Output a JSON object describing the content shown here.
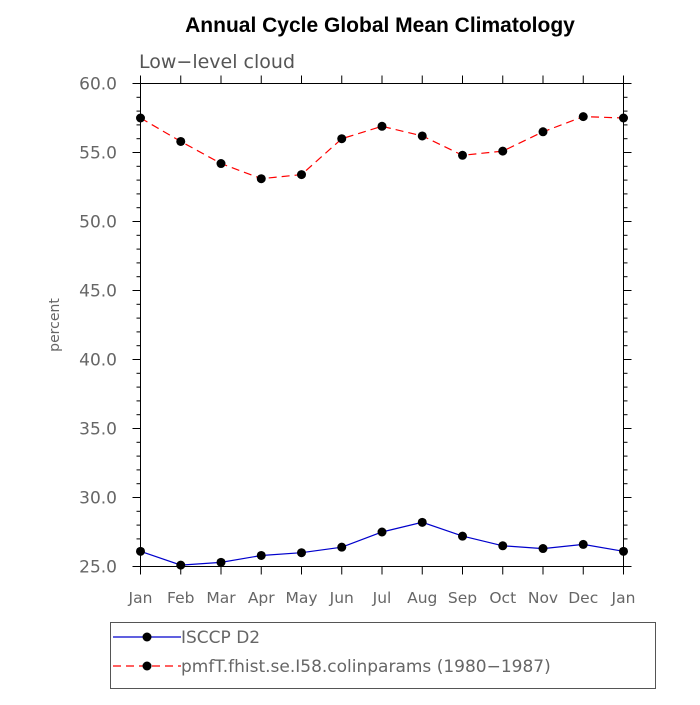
{
  "chart_data": {
    "type": "line",
    "title": "Annual Cycle Global Mean Climatology",
    "subtitle": "Low−level cloud",
    "xlabel": "",
    "ylabel": "percent",
    "categories": [
      "Jan",
      "Feb",
      "Mar",
      "Apr",
      "May",
      "Jun",
      "Jul",
      "Aug",
      "Sep",
      "Oct",
      "Nov",
      "Dec",
      "Jan"
    ],
    "ylim": [
      25.0,
      60.0
    ],
    "yticks": [
      "25.0",
      "30.0",
      "35.0",
      "40.0",
      "45.0",
      "50.0",
      "55.0",
      "60.0"
    ],
    "grid": false,
    "legend_position": "bottom",
    "series": [
      {
        "name": "ISCCP D2",
        "color": "#0000cc",
        "line_style": "solid",
        "marker": "filled-circle",
        "values": [
          26.1,
          25.1,
          25.3,
          25.8,
          26.0,
          26.4,
          27.5,
          28.2,
          27.2,
          26.5,
          26.3,
          26.6,
          26.1
        ]
      },
      {
        "name": "pmfT.fhist.se.I58.colinparams (1980−1987)",
        "color": "#ff0000",
        "line_style": "dashed",
        "marker": "filled-circle",
        "values": [
          57.5,
          55.8,
          54.2,
          53.1,
          53.4,
          56.0,
          56.9,
          56.2,
          54.8,
          55.1,
          56.5,
          57.6,
          57.5
        ]
      }
    ]
  }
}
